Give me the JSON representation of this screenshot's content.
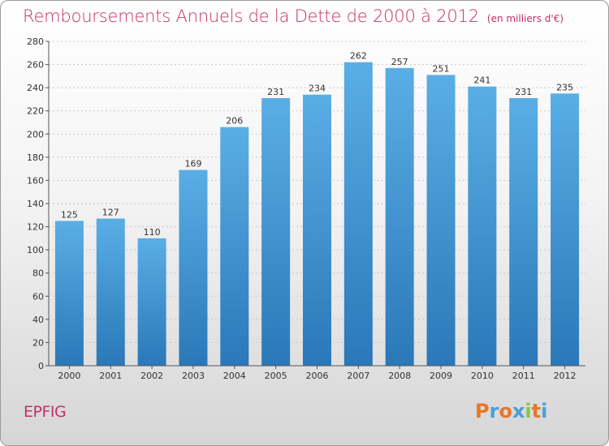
{
  "header": {
    "title": "Remboursements Annuels de la Dette de 2000 à 2012",
    "unit": "(en milliers d'€)"
  },
  "footer": {
    "commune": "EPFIG",
    "logo_text": "Proxiti"
  },
  "colors": {
    "title": "#c2306a",
    "bar_top": "#5aaee6",
    "bar_bottom": "#2a78b8",
    "logo_letters": [
      "#e8762a",
      "#4aa0d8",
      "#e8762a",
      "#4aa0d8",
      "#8bc34a",
      "#e8762a",
      "#4aa0d8"
    ]
  },
  "chart_data": {
    "type": "bar",
    "title": "Remboursements Annuels de la Dette de 2000 à 2012",
    "subtitle": "(en milliers d'€)",
    "xlabel": "",
    "ylabel": "",
    "categories": [
      "2000",
      "2001",
      "2002",
      "2003",
      "2004",
      "2005",
      "2006",
      "2007",
      "2008",
      "2009",
      "2010",
      "2011",
      "2012"
    ],
    "values": [
      125,
      127,
      110,
      169,
      206,
      231,
      234,
      262,
      257,
      251,
      241,
      231,
      235
    ],
    "ylim": [
      0,
      280
    ],
    "yticks": [
      0,
      20,
      40,
      60,
      80,
      100,
      120,
      140,
      160,
      180,
      200,
      220,
      240,
      260,
      280
    ],
    "grid": true,
    "legend": "none"
  }
}
